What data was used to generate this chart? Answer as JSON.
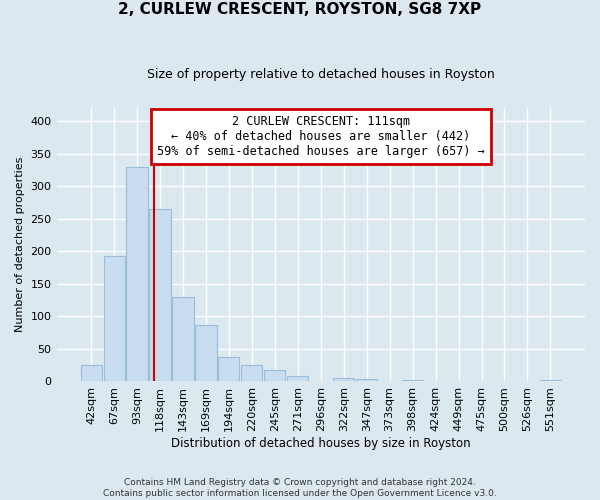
{
  "title": "2, CURLEW CRESCENT, ROYSTON, SG8 7XP",
  "subtitle": "Size of property relative to detached houses in Royston",
  "xlabel": "Distribution of detached houses by size in Royston",
  "ylabel": "Number of detached properties",
  "footer_line1": "Contains HM Land Registry data © Crown copyright and database right 2024.",
  "footer_line2": "Contains public sector information licensed under the Open Government Licence v3.0.",
  "bar_labels": [
    "42sqm",
    "67sqm",
    "93sqm",
    "118sqm",
    "143sqm",
    "169sqm",
    "194sqm",
    "220sqm",
    "245sqm",
    "271sqm",
    "296sqm",
    "322sqm",
    "347sqm",
    "373sqm",
    "398sqm",
    "424sqm",
    "449sqm",
    "475sqm",
    "500sqm",
    "526sqm",
    "551sqm"
  ],
  "bar_values": [
    25,
    193,
    330,
    265,
    130,
    86,
    38,
    26,
    18,
    8,
    0,
    5,
    4,
    0,
    3,
    0,
    0,
    0,
    0,
    0,
    2
  ],
  "bar_color": "#c8ddef",
  "bar_edge_color": "#9abdd8",
  "vline_color": "#cc0000",
  "annotation_title": "2 CURLEW CRESCENT: 111sqm",
  "annotation_line1": "← 40% of detached houses are smaller (442)",
  "annotation_line2": "59% of semi-detached houses are larger (657) →",
  "annotation_box_color": "white",
  "annotation_box_edge": "#cc0000",
  "ylim": [
    0,
    420
  ],
  "yticks": [
    0,
    50,
    100,
    150,
    200,
    250,
    300,
    350,
    400
  ],
  "background_color": "#dce8f0",
  "grid_color": "white",
  "title_fontsize": 11,
  "subtitle_fontsize": 9
}
